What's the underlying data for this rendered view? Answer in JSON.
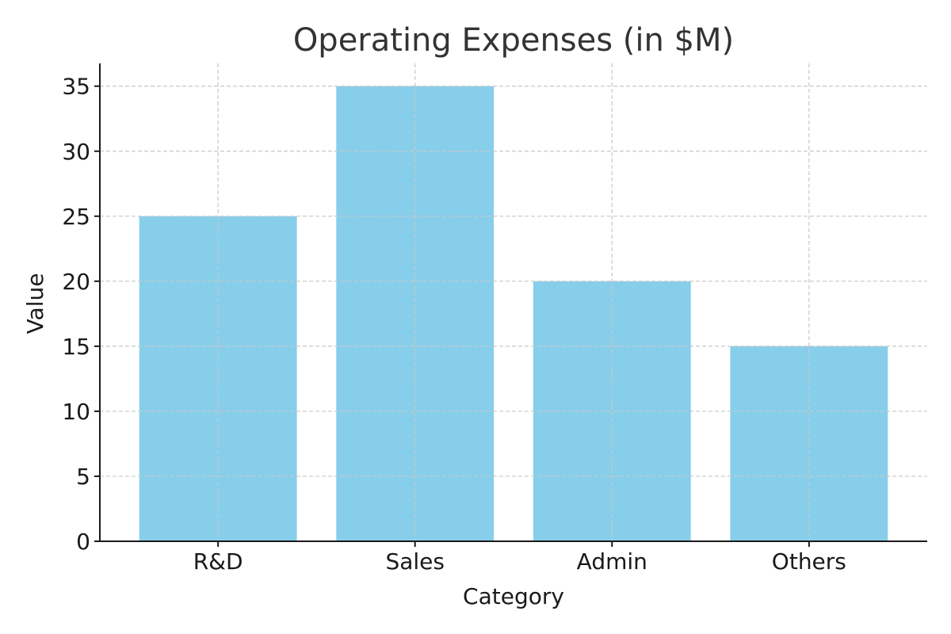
{
  "chart_data": {
    "type": "bar",
    "title": "Operating Expenses (in $M)",
    "xlabel": "Category",
    "ylabel": "Value",
    "categories": [
      "R&D",
      "Sales",
      "Admin",
      "Others"
    ],
    "values": [
      25,
      35,
      20,
      15
    ],
    "ylim": [
      0,
      36.75
    ],
    "yticks": [
      0,
      5,
      10,
      15,
      20,
      25,
      30,
      35
    ],
    "grid": true,
    "bar_color": "#87CEEB"
  }
}
